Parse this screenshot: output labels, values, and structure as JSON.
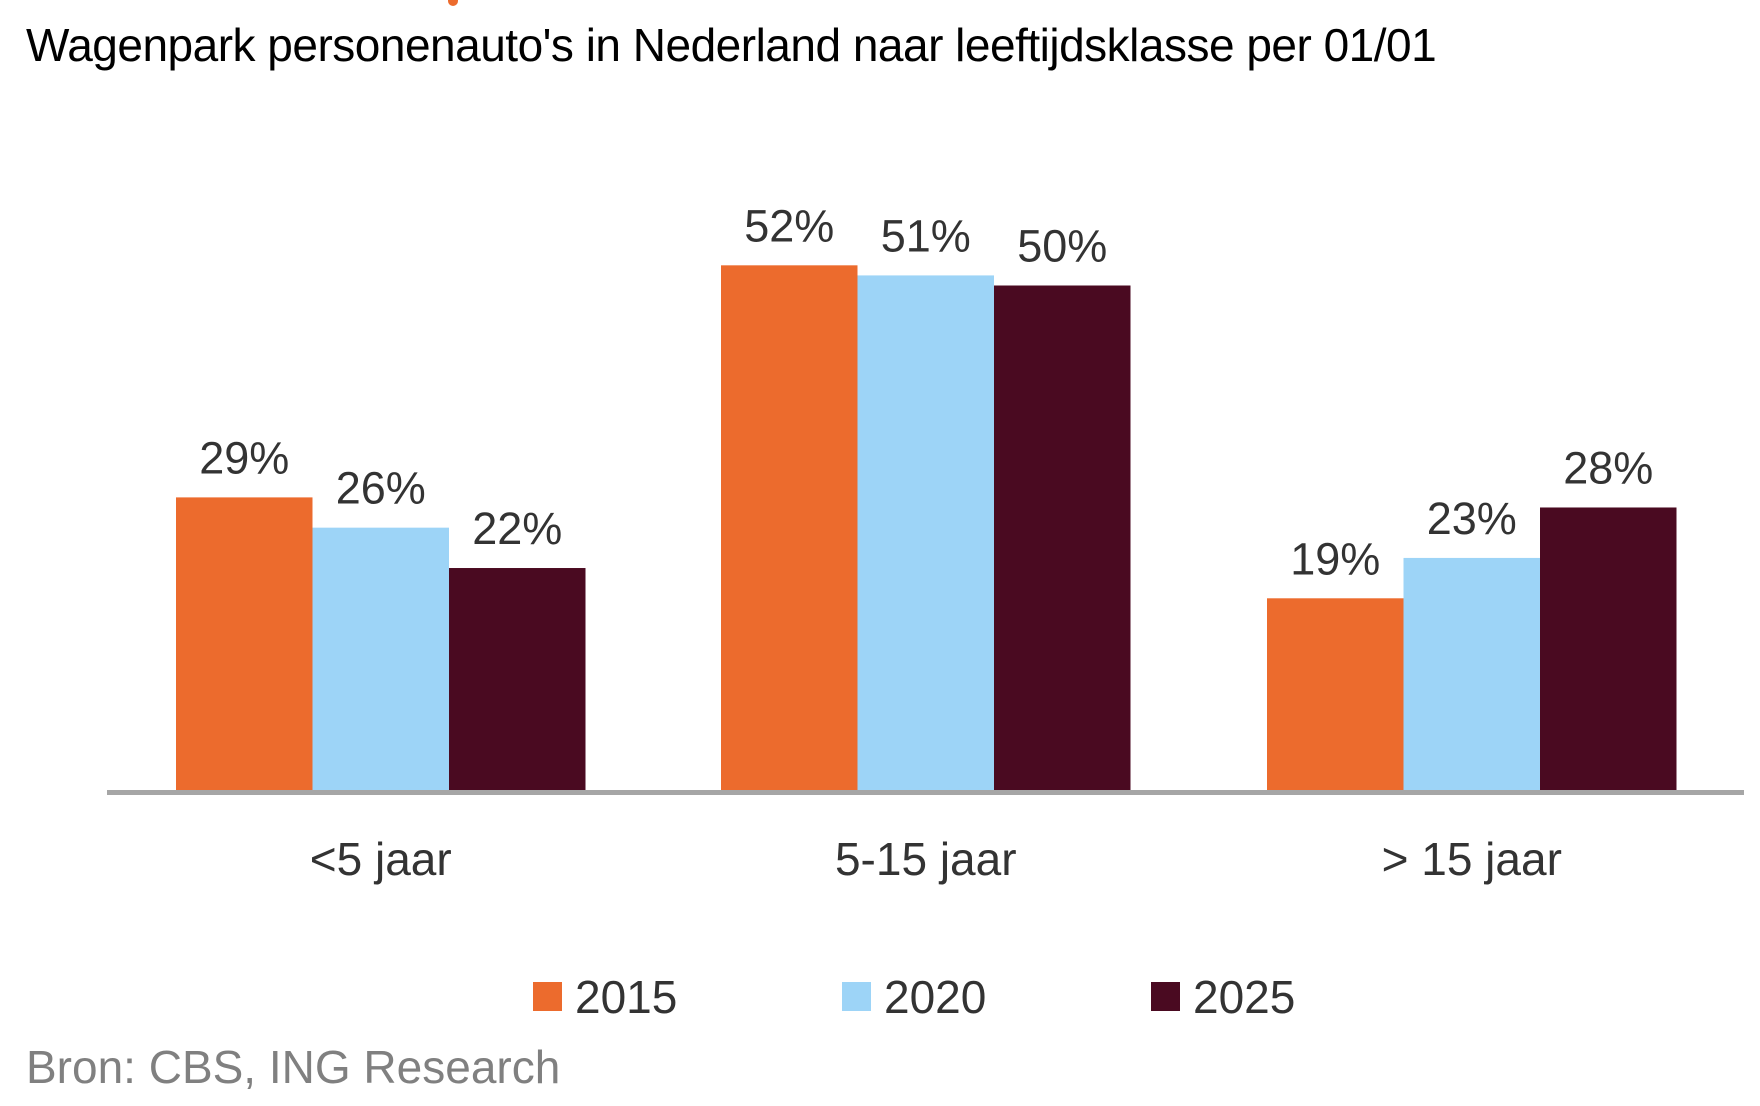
{
  "title": "Wagenpark personenauto's in Nederland naar leeftijdsklasse per  01/01",
  "source": "Bron: CBS, ING Research",
  "chart_data": {
    "type": "bar",
    "title": "Wagenpark personenauto's in Nederland naar leeftijdsklasse per  01/01",
    "categories": [
      "<5 jaar",
      "5-15 jaar",
      "> 15 jaar"
    ],
    "series": [
      {
        "name": "2015",
        "color": "#ec6b2d",
        "values": [
          29,
          52,
          19
        ],
        "labels": [
          "29%",
          "52%",
          "19%"
        ]
      },
      {
        "name": "2020",
        "color": "#9dd4f7",
        "values": [
          26,
          51,
          23
        ],
        "labels": [
          "26%",
          "51%",
          "23%"
        ]
      },
      {
        "name": "2025",
        "color": "#4a0a21",
        "values": [
          22,
          50,
          28
        ],
        "labels": [
          "22%",
          "50%",
          "28%"
        ]
      }
    ],
    "ylim": [
      0,
      60
    ],
    "unit": "%",
    "grid": false,
    "legend_position": "bottom",
    "axis_color": "#a6a6a6"
  }
}
